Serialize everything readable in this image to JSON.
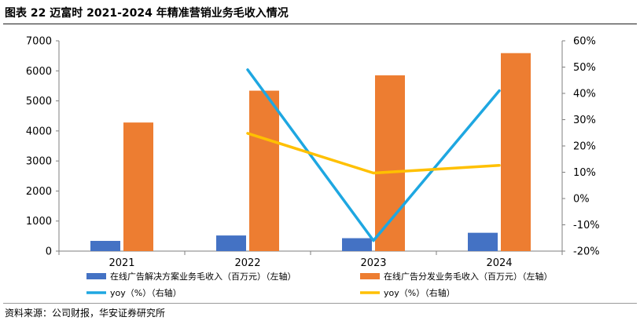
{
  "title": "图表 22  迈富时 2021-2024 年精准营销业务毛收入情况",
  "source": "资料来源：公司财报，华安证券研究所",
  "colors": {
    "bar_solution": "#4472C4",
    "bar_distribution": "#ED7D31",
    "line_yoy_solution": "#1EA7E1",
    "line_yoy_distribution": "#FFC000",
    "axis": "#7f7f7f",
    "text": "#000000"
  },
  "chart_data": {
    "type": "bar",
    "categories": [
      "2021",
      "2022",
      "2023",
      "2024"
    ],
    "y_left": {
      "ylim": [
        0,
        7000
      ],
      "ticks": [
        0,
        1000,
        2000,
        3000,
        4000,
        5000,
        6000,
        7000
      ],
      "tick_labels": [
        "0",
        "1000",
        "2000",
        "3000",
        "4000",
        "5000",
        "6000",
        "7000"
      ]
    },
    "y_right": {
      "ylim": [
        -20,
        60
      ],
      "ticks": [
        -20,
        -10,
        0,
        10,
        20,
        30,
        40,
        50,
        60
      ],
      "tick_labels": [
        "-20%",
        "-10%",
        "0%",
        "10%",
        "20%",
        "30%",
        "40%",
        "50%",
        "60%"
      ]
    },
    "series": [
      {
        "name": "在线广告解决方案业务毛收入（百万元）（左轴）",
        "kind": "bar",
        "axis": "left",
        "values": [
          340,
          520,
          430,
          610
        ]
      },
      {
        "name": "在线广告分发业务毛收入（百万元）（左轴）",
        "kind": "bar",
        "axis": "left",
        "values": [
          4280,
          5340,
          5850,
          6590
        ]
      },
      {
        "name": "yoy（%）（右轴）",
        "kind": "line",
        "axis": "right",
        "values": [
          null,
          49,
          -16,
          41
        ]
      },
      {
        "name": "yoy（%）（右轴）",
        "kind": "line",
        "axis": "right",
        "values": [
          null,
          24.8,
          9.7,
          12.6
        ]
      }
    ],
    "legend_position": "bottom"
  }
}
